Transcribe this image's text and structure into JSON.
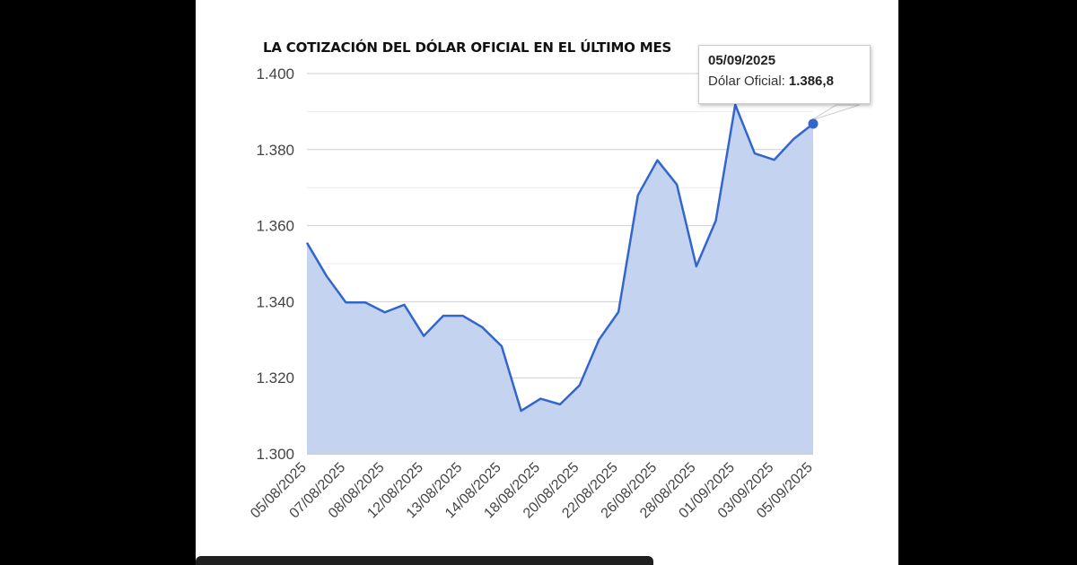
{
  "chart_data": {
    "type": "area",
    "title": "LA COTIZACIÓN DEL DÓLAR OFICIAL EN EL ÚLTIMO MES",
    "xlabel": "",
    "ylabel": "",
    "ylim": [
      1300,
      1400
    ],
    "yticks": [
      1300,
      1320,
      1340,
      1360,
      1380,
      1400
    ],
    "ytick_labels": [
      "1.300",
      "1.320",
      "1.340",
      "1.360",
      "1.380",
      "1.400"
    ],
    "xtick_labels": [
      "05/08/2025",
      "07/08/2025",
      "08/08/2025",
      "12/08/2025",
      "13/08/2025",
      "14/08/2025",
      "18/08/2025",
      "20/08/2025",
      "22/08/2025",
      "26/08/2025",
      "28/08/2025",
      "01/09/2025",
      "03/09/2025",
      "05/09/2025"
    ],
    "grid": true,
    "series": [
      {
        "name": "Dólar Oficial",
        "color": "#3366cc",
        "fill": "#c3d3f0",
        "values": [
          1355.5,
          1346.8,
          1339.8,
          1339.8,
          1337.2,
          1339.2,
          1331.0,
          1336.3,
          1336.3,
          1333.3,
          1328.3,
          1311.3,
          1314.5,
          1313.0,
          1318.0,
          1330.0,
          1337.3,
          1368.0,
          1377.2,
          1370.8,
          1349.3,
          1361.3,
          1391.8,
          1379.0,
          1377.3,
          1382.8,
          1386.8
        ]
      }
    ],
    "tooltip": {
      "date": "05/09/2025",
      "series_label": "Dólar Oficial:",
      "value": "1.386,8"
    }
  },
  "colors": {
    "line": "#3366cc",
    "area": "#c3d3f0",
    "grid": "#d6d6d6",
    "axis_text": "#444444"
  }
}
